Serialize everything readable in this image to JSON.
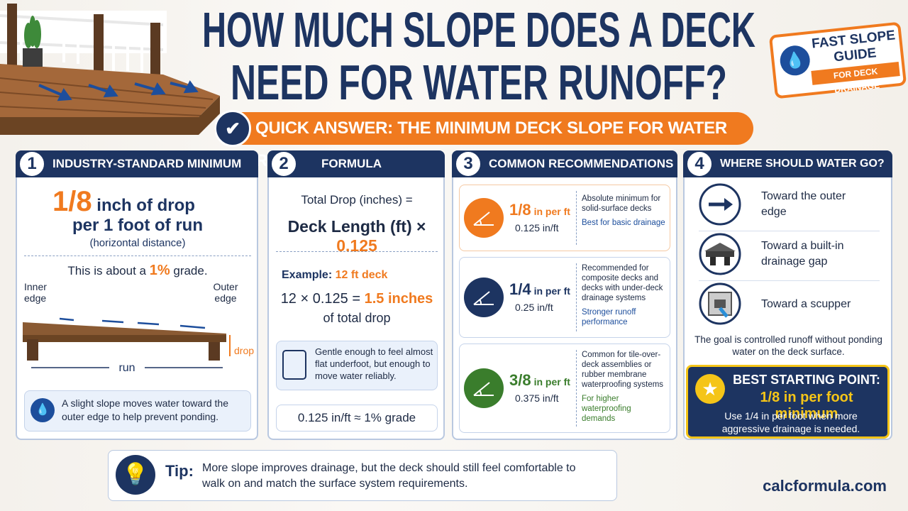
{
  "header": {
    "title_line1": "HOW MUCH SLOPE DOES A DECK",
    "title_line2": "NEED FOR WATER RUNOFF?",
    "badge": {
      "line1": "FAST SLOPE",
      "line2": "GUIDE",
      "line3": "FOR DECK DRAINAGE"
    }
  },
  "quick_answer": "QUICK ANSWER: THE MINIMUM DECK SLOPE FOR WATER RUNOFF",
  "panel1": {
    "number": "1",
    "title": "INDUSTRY-STANDARD MINIMUM",
    "rate": "1/8",
    "rate_text": "inch of drop",
    "line2": "per 1 foot of run",
    "note": "(horizontal distance)",
    "grade_prefix": "This is about a",
    "grade": "1%",
    "grade_suffix": "grade.",
    "inner_label": "Inner edge",
    "outer_label": "Outer edge",
    "drop_label": "drop",
    "run_label": "run",
    "info": "A slight slope moves water toward the outer edge to help prevent ponding."
  },
  "panel2": {
    "number": "2",
    "title": "FORMULA",
    "formula_line1": "Total Drop (inches) =",
    "formula_lhs": "Deck Length (ft) ×",
    "formula_factor": "0.125",
    "example_label": "Example:",
    "example_value": "12 ft deck",
    "calc": "12 × 0.125 =",
    "result": "1.5 inches",
    "result_suffix": "of total drop",
    "hint": "Gentle enough to feel almost flat underfoot, but enough to move water reliably.",
    "equivalence": "0.125 in/ft ≈ 1% grade"
  },
  "panel3": {
    "number": "3",
    "title": "COMMON RECOMMENDATIONS",
    "items": [
      {
        "rate": "1/8",
        "unit": "in per ft",
        "decimal": "0.125 in/ft",
        "desc": "Absolute minimum for solid-surface decks",
        "note": "Best for basic drainage"
      },
      {
        "rate": "1/4",
        "unit": "in per ft",
        "decimal": "0.25 in/ft",
        "desc": "Recommended for composite decks and decks with under-deck drainage systems",
        "note": "Stronger runoff performance"
      },
      {
        "rate": "3/8",
        "unit": "in per ft",
        "decimal": "0.375 in/ft",
        "desc": "Common for tile-over-deck assemblies or rubber membrane waterproofing systems",
        "note": "For higher waterproofing demands"
      }
    ]
  },
  "panel4": {
    "number": "4",
    "title": "WHERE SHOULD WATER GO?",
    "items": [
      "Toward the outer edge",
      "Toward a built-in drainage gap",
      "Toward a scupper"
    ],
    "goal": "The goal is controlled runoff without ponding water on the deck surface.",
    "best": {
      "title": "BEST STARTING POINT:",
      "value": "1/8 in per foot minimum",
      "text": "Use 1/4 in per foot when more aggressive drainage is needed."
    }
  },
  "tip": {
    "label": "Tip:",
    "text": "More slope improves drainage, but the deck should still feel comfortable to walk on and match the surface system requirements."
  },
  "footer": "calcformula.com"
}
